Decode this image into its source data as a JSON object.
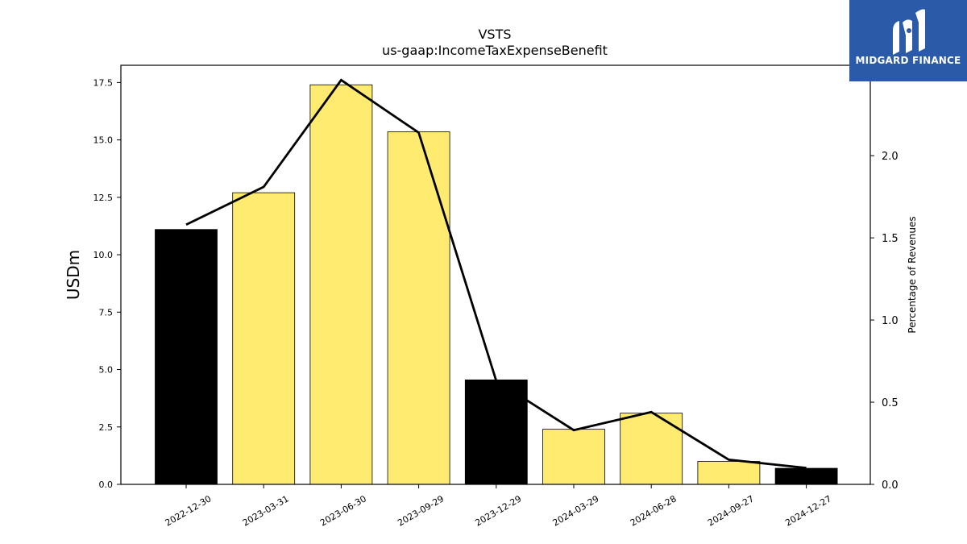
{
  "brand": {
    "name": "MIDGARD FINANCE",
    "icon": "midgard-logo-icon",
    "color": "#2b5aa8"
  },
  "chart_data": {
    "type": "bar",
    "title": "VSTS",
    "subtitle": "us-gaap:IncomeTaxExpenseBenefit",
    "ylabel": "USDm",
    "y2label": "Percentage of Revenues",
    "categories": [
      "2022-12-30",
      "2023-03-31",
      "2023-06-30",
      "2023-09-29",
      "2023-12-29",
      "2024-03-29",
      "2024-06-28",
      "2024-09-27",
      "2024-12-27"
    ],
    "series": [
      {
        "type": "bar",
        "axis": "left",
        "values": [
          11.1,
          12.7,
          17.4,
          15.35,
          4.55,
          2.4,
          3.1,
          1.0,
          0.7
        ],
        "colors": [
          "#000000",
          "#ffeb70",
          "#ffeb70",
          "#ffeb70",
          "#000000",
          "#ffeb70",
          "#ffeb70",
          "#ffeb70",
          "#000000"
        ]
      },
      {
        "type": "line",
        "axis": "right",
        "color": "#000000",
        "values": [
          1.58,
          1.81,
          2.46,
          2.14,
          0.63,
          0.33,
          0.44,
          0.15,
          0.1
        ]
      }
    ],
    "ylim": [
      0,
      18.25
    ],
    "y2lim": [
      0,
      2.55
    ],
    "yticks": [
      0.0,
      2.5,
      5.0,
      7.5,
      10.0,
      12.5,
      15.0,
      17.5
    ],
    "y2ticks": [
      0.0,
      0.5,
      1.0,
      1.5,
      2.0
    ],
    "grid": false,
    "legend": "none"
  }
}
